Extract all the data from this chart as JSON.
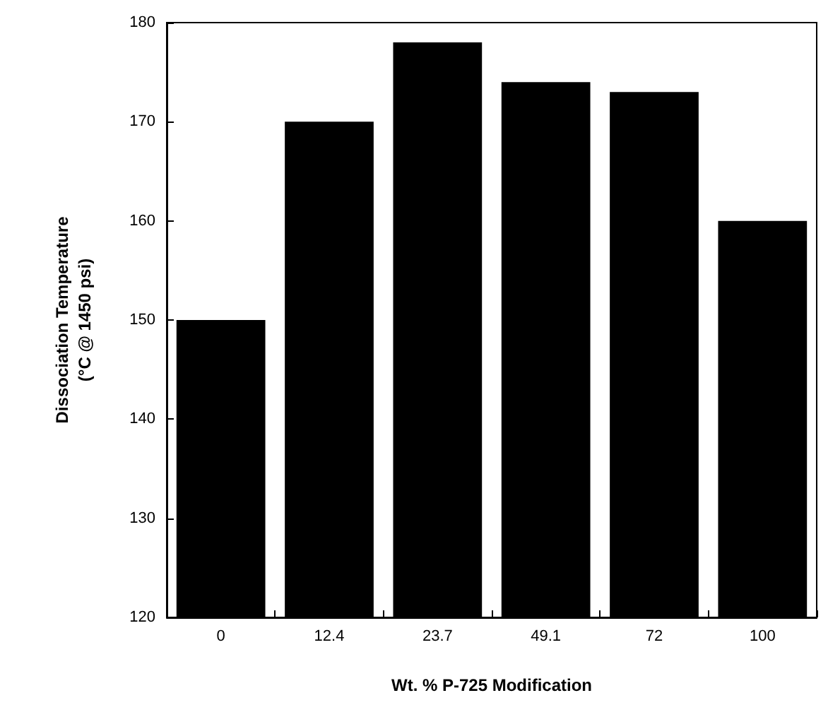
{
  "chart_data": {
    "type": "bar",
    "xlabel": "Wt. % P-725 Modification",
    "ylabel": "Dissociation Temperature\n(°C @ 1450 psi)",
    "categories": [
      "0",
      "12.4",
      "23.7",
      "49.1",
      "72",
      "100"
    ],
    "values": [
      150,
      170,
      178,
      174,
      173,
      160
    ],
    "color": "#000000",
    "ylim": [
      120,
      180
    ],
    "yticks": [
      120,
      130,
      140,
      150,
      160,
      170,
      180
    ],
    "grid": false
  }
}
